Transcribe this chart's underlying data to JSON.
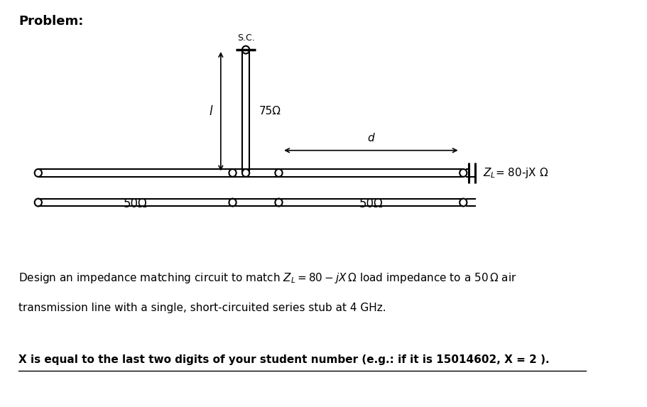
{
  "title": "Problem:",
  "bg_color": "#ffffff",
  "fig_width": 9.12,
  "fig_height": 5.73,
  "desc_line1": "Design an impedance matching circuit to match $Z_L = 80 - jX\\,\\Omega$ load impedance to a $50\\,\\Omega$ air",
  "desc_line2": "transmission line with a single, short-circuited series stub at 4 GHz.",
  "underline_text": "X is equal to the last two digits of your student number (e.g.: if it is 15014602, X = 2 ).",
  "stub_label": "S.C.",
  "stub_impedance": "75Ω",
  "stub_length_label": "l",
  "distance_label": "d",
  "left_line_label": "50Ω",
  "right_line_label": "50Ω",
  "load_label": "$Z_L$= 80-jX Ω"
}
